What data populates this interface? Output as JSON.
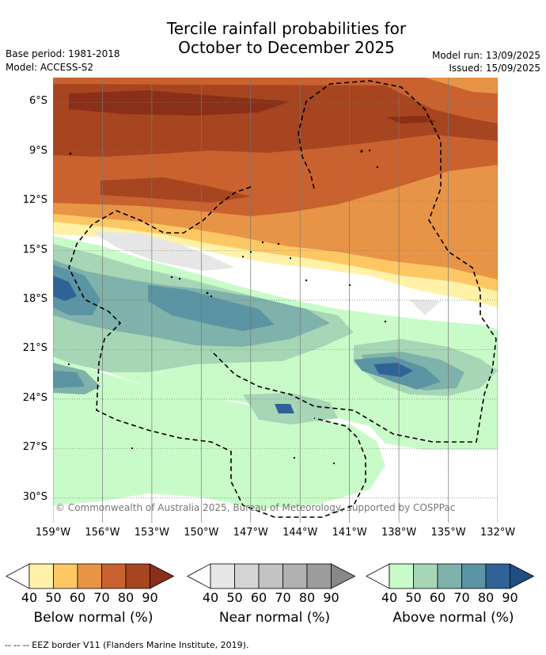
{
  "header": {
    "title_line1": "Tercile rainfall probabilities for",
    "title_line2": "October to December 2025",
    "base_period": "Base period: 1981-2018",
    "model": "Model: ACCESS-S2",
    "model_run": "Model run: 13/09/2025",
    "issued": "Issued: 15/09/2025"
  },
  "map": {
    "credit": "© Commonwealth of Australia 2025, Bureau of Meteorology, supported by COSPPac",
    "footer": "-- -- -- EEZ border V11 (Flanders Marine Institute, 2019)."
  },
  "chart_data": {
    "type": "heatmap",
    "lat_ticks": [
      "6°S",
      "9°S",
      "12°S",
      "15°S",
      "18°S",
      "21°S",
      "24°S",
      "27°S",
      "30°S"
    ],
    "lon_ticks": [
      "159°W",
      "156°W",
      "153°W",
      "150°W",
      "147°W",
      "144°W",
      "141°W",
      "138°W",
      "135°W",
      "132°W"
    ],
    "lat_range": [
      -31.5,
      -4.5
    ],
    "lon_range": [
      -159,
      -132
    ],
    "grid": true,
    "colorbars": [
      {
        "label": "Below normal (%)",
        "ticks": [
          "40",
          "50",
          "60",
          "70",
          "80",
          "90"
        ],
        "colors": [
          "#fff2a8",
          "#fdc864",
          "#e89447",
          "#c9622f",
          "#a6451f",
          "#8a3018"
        ]
      },
      {
        "label": "Near normal (%)",
        "ticks": [
          "40",
          "50",
          "60",
          "70",
          "80",
          "90"
        ],
        "colors": [
          "#e6e6e6",
          "#d4d4d4",
          "#c2c2c2",
          "#b0b0b0",
          "#9c9c9c",
          "#888888"
        ]
      },
      {
        "label": "Above normal (%)",
        "ticks": [
          "40",
          "50",
          "60",
          "70",
          "80",
          "90"
        ],
        "colors": [
          "#c9fbc9",
          "#a6d6b5",
          "#7fb2aa",
          "#5b94a2",
          "#2f6398",
          "#1f4f82"
        ]
      }
    ],
    "summary": "Below-normal rainfall most likely north of about 15°S (probabilities 60-90%); above-normal rainfall favoured across 16°S-31°S (40-80%); near-normal patches near 15°S and 20°S."
  }
}
